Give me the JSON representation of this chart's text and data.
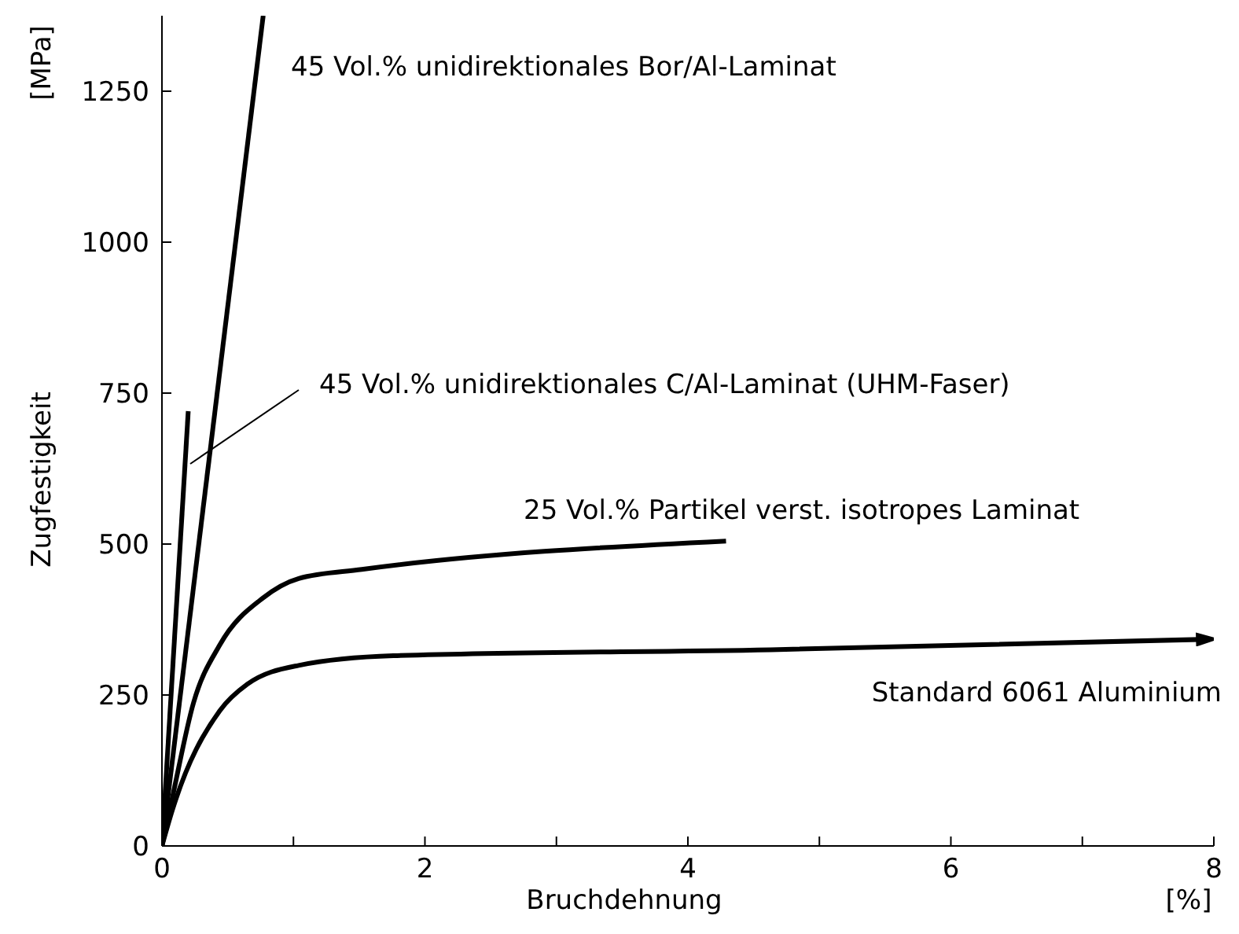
{
  "chart_data": {
    "type": "line",
    "xlabel": "Bruchdehnung",
    "ylabel": "Zugfestigkeit",
    "annotations": [
      "[MPa]",
      "[%]"
    ],
    "xlim": [
      0,
      8
    ],
    "ylim": [
      0,
      1375
    ],
    "xticks": [
      0,
      {
        "value": 1,
        "label": null
      },
      2,
      {
        "value": 3,
        "label": null
      },
      4,
      {
        "value": 5,
        "label": null
      },
      6,
      {
        "value": 7,
        "label": null
      },
      8
    ],
    "yticks": [
      0,
      250,
      500,
      750,
      1000,
      1250
    ],
    "marker": "none",
    "line_style": "solid",
    "series": [
      {
        "name": "45 Vol.% unidirektionales Bor/Al-Laminat",
        "color": "#000000",
        "x": [
          0,
          0.77
        ],
        "values": [
          0,
          1375
        ]
      },
      {
        "name": "45 Vol.% unidirektionales C/Al-Laminat (UHM-Faser)",
        "color": "#000000",
        "x": [
          0,
          0.2
        ],
        "values": [
          0,
          720
        ]
      },
      {
        "name": "25 Vol.% Partikel verst. isotropes Laminat",
        "color": "#000000",
        "x": [
          0,
          0.08,
          0.24,
          0.44,
          0.77,
          1.04,
          1.52,
          4.29
        ],
        "values": [
          0,
          81,
          237,
          333,
          411,
          443,
          458,
          505
        ]
      },
      {
        "name": "Standard 6061 Aluminium",
        "color": "#000000",
        "x": [
          0,
          0.08,
          0.44,
          0.65,
          1.04,
          1.76,
          4.63,
          7.9
        ],
        "values": [
          0,
          60,
          224,
          268,
          299,
          315,
          325,
          342
        ]
      }
    ]
  }
}
